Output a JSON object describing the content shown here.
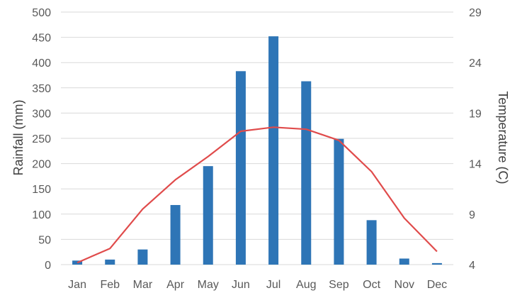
{
  "chart_data": {
    "type": "bar",
    "categories": [
      "Jan",
      "Feb",
      "Mar",
      "Apr",
      "May",
      "Jun",
      "Jul",
      "Aug",
      "Sep",
      "Oct",
      "Nov",
      "Dec"
    ],
    "series": [
      {
        "type": "bar",
        "axis": "left",
        "color": "#2E75B6",
        "values": [
          8,
          10,
          30,
          118,
          195,
          383,
          452,
          363,
          249,
          88,
          12,
          3
        ]
      },
      {
        "type": "line",
        "axis": "right",
        "color": "#E04B4B",
        "values": [
          4.2,
          5.6,
          9.5,
          12.4,
          14.7,
          17.2,
          17.6,
          17.4,
          16.3,
          13.2,
          8.6,
          5.3
        ]
      }
    ],
    "ylabel": "Rainfall (mm)",
    "y2label": "Temperature (C)",
    "ylim": [
      0,
      500
    ],
    "y2lim": [
      4,
      29
    ],
    "yticks": [
      0,
      50,
      100,
      150,
      200,
      250,
      300,
      350,
      400,
      450,
      500
    ],
    "y2ticks": [
      4,
      9,
      14,
      19,
      24,
      29
    ],
    "grid": true,
    "legend": "none"
  }
}
